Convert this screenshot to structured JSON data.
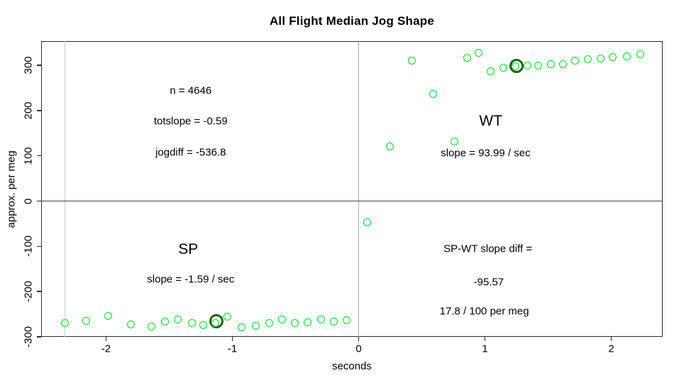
{
  "title": "All Flight Median Jog Shape",
  "axes": {
    "xlabel": "seconds",
    "ylabel": "approx. per meg",
    "x_ticks": [
      "-2",
      "-1",
      "0",
      "1",
      "2"
    ],
    "x_tick_values": [
      -2,
      -1,
      0,
      1,
      2
    ],
    "y_ticks": [
      "-300",
      "-200",
      "-100",
      "0",
      "100",
      "200",
      "300"
    ],
    "y_tick_values": [
      -300,
      -200,
      -100,
      0,
      100,
      200,
      300
    ]
  },
  "chart_data": {
    "type": "scatter",
    "title": "All Flight Median Jog Shape",
    "xlabel": "seconds",
    "ylabel": "approx. per meg",
    "xlim": [
      -2.514,
      2.407
    ],
    "ylim": [
      -300,
      353.3
    ],
    "grid": false,
    "legend": "none",
    "series": [
      {
        "name": "SP",
        "points": [
          [
            -2.326,
            -269
          ],
          [
            -2.158,
            -264
          ],
          [
            -1.984,
            -254
          ],
          [
            -1.806,
            -272
          ],
          [
            -1.643,
            -278
          ],
          [
            -1.535,
            -267
          ],
          [
            -1.434,
            -262
          ],
          [
            -1.318,
            -270
          ],
          [
            -1.233,
            -274
          ],
          [
            -1.136,
            -270
          ],
          [
            -1.038,
            -256
          ],
          [
            -0.926,
            -279
          ],
          [
            -0.817,
            -275
          ],
          [
            -0.709,
            -269
          ],
          [
            -0.608,
            -261
          ],
          [
            -0.508,
            -270
          ],
          [
            -0.402,
            -268
          ],
          [
            -0.297,
            -262
          ],
          [
            -0.196,
            -266
          ],
          [
            -0.093,
            -263
          ]
        ]
      },
      {
        "name": "WT",
        "points": [
          [
            0.07,
            -47
          ],
          [
            0.248,
            121
          ],
          [
            0.422,
            310
          ],
          [
            0.591,
            237
          ],
          [
            0.761,
            132
          ],
          [
            0.858,
            316
          ],
          [
            0.952,
            327
          ],
          [
            1.046,
            286
          ],
          [
            1.145,
            295
          ],
          [
            1.239,
            297
          ],
          [
            1.336,
            299
          ],
          [
            1.42,
            300
          ],
          [
            1.524,
            302
          ],
          [
            1.617,
            303
          ],
          [
            1.715,
            311
          ],
          [
            1.814,
            313
          ],
          [
            1.913,
            315
          ],
          [
            2.01,
            318
          ],
          [
            2.123,
            320
          ],
          [
            2.231,
            324
          ]
        ]
      }
    ],
    "highlighted_points": [
      {
        "x": -1.127,
        "y": -266
      },
      {
        "x": 1.252,
        "y": 298
      }
    ],
    "reference_lines": {
      "vertical": [
        {
          "x": 0,
          "color": "#a8a8a8",
          "width": 1.5
        },
        {
          "x": -2.326,
          "color": "#cccccc",
          "width": 1.2
        }
      ],
      "horizontal": [
        {
          "y": 0,
          "color": "#454545",
          "width": 1.5
        }
      ]
    },
    "annotations": [
      {
        "text": "n = 4646",
        "x": -1.33,
        "y": 244,
        "large": false
      },
      {
        "text": "totslope = -0.59",
        "x": -1.33,
        "y": 176,
        "large": false
      },
      {
        "text": "jogdiff = -536.8",
        "x": -1.33,
        "y": 107,
        "large": false
      },
      {
        "text": "WT",
        "x": 1.046,
        "y": 177,
        "large": true
      },
      {
        "text": "slope = 93.99 / sec",
        "x": 1.005,
        "y": 105,
        "large": false
      },
      {
        "text": "SP",
        "x": -1.35,
        "y": -107,
        "large": true
      },
      {
        "text": "slope = -1.59 / sec",
        "x": -1.33,
        "y": -173,
        "large": false
      },
      {
        "text": "SP-WT slope diff =",
        "x": 1.023,
        "y": -106,
        "large": false
      },
      {
        "text": "-95.57",
        "x": 1.03,
        "y": -180,
        "large": false
      },
      {
        "text": "17.8 / 100 per meg",
        "x": 0.995,
        "y": -243,
        "large": false
      }
    ]
  },
  "colors": {
    "point_green": "#00dd1c",
    "ring_dark_green": "#156418",
    "axis": "#2e2e2e",
    "text": "#000000",
    "background": "#ffffff"
  }
}
